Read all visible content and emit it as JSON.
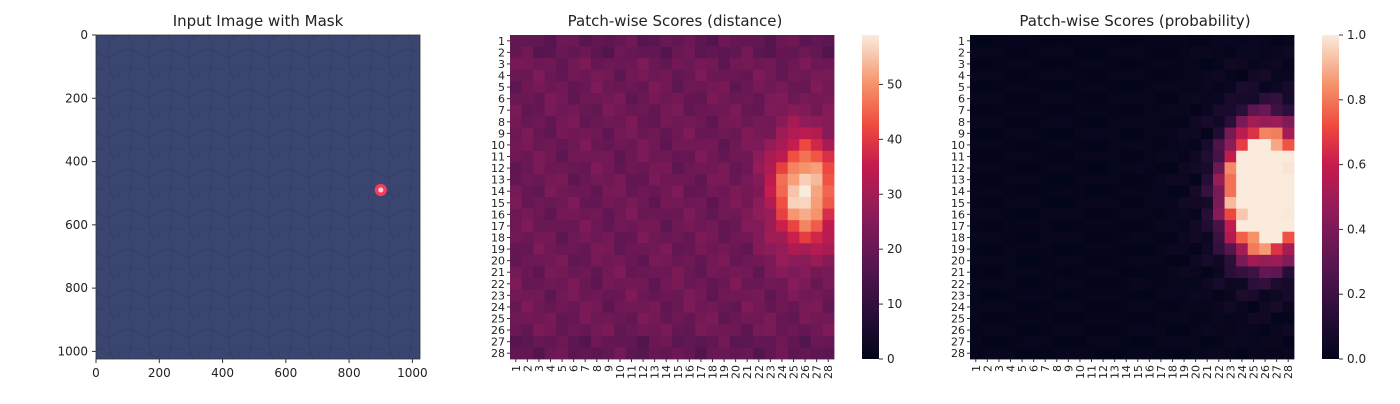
{
  "chart_data": [
    {
      "type": "image",
      "title": "Input Image with Mask",
      "xlim": [
        0,
        1024
      ],
      "ylim": [
        1024,
        0
      ],
      "xticks": [
        0,
        200,
        400,
        600,
        800,
        1000
      ],
      "yticks": [
        0,
        200,
        400,
        600,
        800,
        1000
      ],
      "background_color": "#3b4670",
      "mask": {
        "x": 900,
        "y": 490,
        "color": "#ff3b5c"
      }
    },
    {
      "type": "heatmap",
      "title": "Patch-wise Scores (distance)",
      "rows": 28,
      "cols": 28,
      "tick_labels": [
        "1",
        "2",
        "3",
        "4",
        "5",
        "6",
        "7",
        "8",
        "9",
        "10",
        "11",
        "12",
        "13",
        "14",
        "15",
        "16",
        "17",
        "18",
        "19",
        "20",
        "21",
        "22",
        "23",
        "24",
        "25",
        "26",
        "27",
        "28"
      ],
      "colorbar_ticks": [
        0,
        10,
        20,
        30,
        40,
        50
      ],
      "vmin": 0,
      "vmax": 59,
      "colormap": "rocket",
      "base_value": 21,
      "hotspot": {
        "row": 14,
        "col": 26,
        "peak": 59
      }
    },
    {
      "type": "heatmap",
      "title": "Patch-wise Scores (probability)",
      "rows": 28,
      "cols": 28,
      "tick_labels": [
        "1",
        "2",
        "3",
        "4",
        "5",
        "6",
        "7",
        "8",
        "9",
        "10",
        "11",
        "12",
        "13",
        "14",
        "15",
        "16",
        "17",
        "18",
        "19",
        "20",
        "21",
        "22",
        "23",
        "24",
        "25",
        "26",
        "27",
        "28"
      ],
      "colorbar_ticks": [
        "0.0",
        "0.2",
        "0.4",
        "0.6",
        "0.8",
        "1.0"
      ],
      "vmin": 0,
      "vmax": 1,
      "colormap": "rocket",
      "base_value": 0.02,
      "hotspot": {
        "row": 14,
        "col": 26,
        "peak": 1.0
      }
    }
  ]
}
